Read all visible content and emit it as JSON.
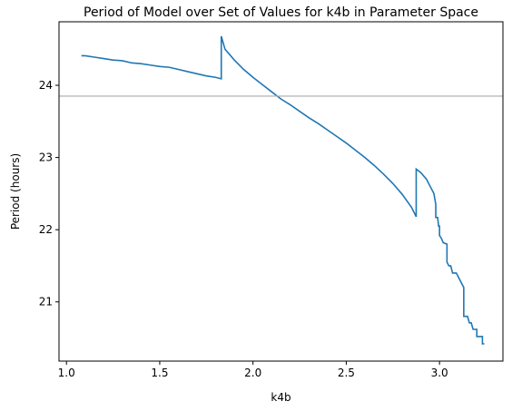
{
  "chart_data": {
    "type": "line",
    "title": "Period of Model over Set of Values for k4b in Parameter Space",
    "xlabel": "k4b",
    "ylabel": "Period (hours)",
    "xlim": [
      0.96,
      3.34
    ],
    "ylim": [
      20.18,
      24.88
    ],
    "x_ticks": [
      1.0,
      1.5,
      2.0,
      2.5,
      3.0
    ],
    "x_tick_labels": [
      "1.0",
      "1.5",
      "2.0",
      "2.5",
      "3.0"
    ],
    "y_ticks": [
      21,
      22,
      23,
      24
    ],
    "y_tick_labels": [
      "21",
      "22",
      "23",
      "24"
    ],
    "grid": false,
    "reference_line": {
      "orientation": "horizontal",
      "y": 23.85,
      "color": "#aaaaaa"
    },
    "series": [
      {
        "color": "#1f77b4",
        "points": [
          [
            1.08,
            24.41
          ],
          [
            1.1,
            24.41
          ],
          [
            1.15,
            24.39
          ],
          [
            1.2,
            24.37
          ],
          [
            1.25,
            24.35
          ],
          [
            1.3,
            24.34
          ],
          [
            1.35,
            24.31
          ],
          [
            1.4,
            24.3
          ],
          [
            1.45,
            24.28
          ],
          [
            1.5,
            24.26
          ],
          [
            1.55,
            24.25
          ],
          [
            1.6,
            24.22
          ],
          [
            1.65,
            24.19
          ],
          [
            1.7,
            24.16
          ],
          [
            1.75,
            24.13
          ],
          [
            1.8,
            24.11
          ],
          [
            1.83,
            24.09
          ],
          [
            1.83,
            24.68
          ],
          [
            1.85,
            24.5
          ],
          [
            1.9,
            24.35
          ],
          [
            1.95,
            24.22
          ],
          [
            2.0,
            24.11
          ],
          [
            2.05,
            24.01
          ],
          [
            2.1,
            23.91
          ],
          [
            2.15,
            23.81
          ],
          [
            2.2,
            23.73
          ],
          [
            2.25,
            23.64
          ],
          [
            2.3,
            23.55
          ],
          [
            2.35,
            23.47
          ],
          [
            2.4,
            23.38
          ],
          [
            2.45,
            23.29
          ],
          [
            2.5,
            23.2
          ],
          [
            2.55,
            23.1
          ],
          [
            2.6,
            23.0
          ],
          [
            2.65,
            22.89
          ],
          [
            2.7,
            22.77
          ],
          [
            2.75,
            22.64
          ],
          [
            2.8,
            22.49
          ],
          [
            2.85,
            22.31
          ],
          [
            2.875,
            22.18
          ],
          [
            2.875,
            22.84
          ],
          [
            2.9,
            22.79
          ],
          [
            2.93,
            22.7
          ],
          [
            2.95,
            22.6
          ],
          [
            2.97,
            22.5
          ],
          [
            2.98,
            22.35
          ],
          [
            2.98,
            22.17
          ],
          [
            2.99,
            22.17
          ],
          [
            2.995,
            22.05
          ],
          [
            3.0,
            22.05
          ],
          [
            3.0,
            21.92
          ],
          [
            3.01,
            21.88
          ],
          [
            3.02,
            21.82
          ],
          [
            3.04,
            21.8
          ],
          [
            3.04,
            21.55
          ],
          [
            3.05,
            21.5
          ],
          [
            3.06,
            21.5
          ],
          [
            3.07,
            21.4
          ],
          [
            3.09,
            21.4
          ],
          [
            3.1,
            21.35
          ],
          [
            3.11,
            21.3
          ],
          [
            3.12,
            21.25
          ],
          [
            3.13,
            21.2
          ],
          [
            3.13,
            20.8
          ],
          [
            3.15,
            20.8
          ],
          [
            3.16,
            20.71
          ],
          [
            3.17,
            20.71
          ],
          [
            3.18,
            20.62
          ],
          [
            3.2,
            20.62
          ],
          [
            3.2,
            20.52
          ],
          [
            3.23,
            20.52
          ],
          [
            3.23,
            20.42
          ],
          [
            3.24,
            20.42
          ]
        ]
      }
    ]
  }
}
